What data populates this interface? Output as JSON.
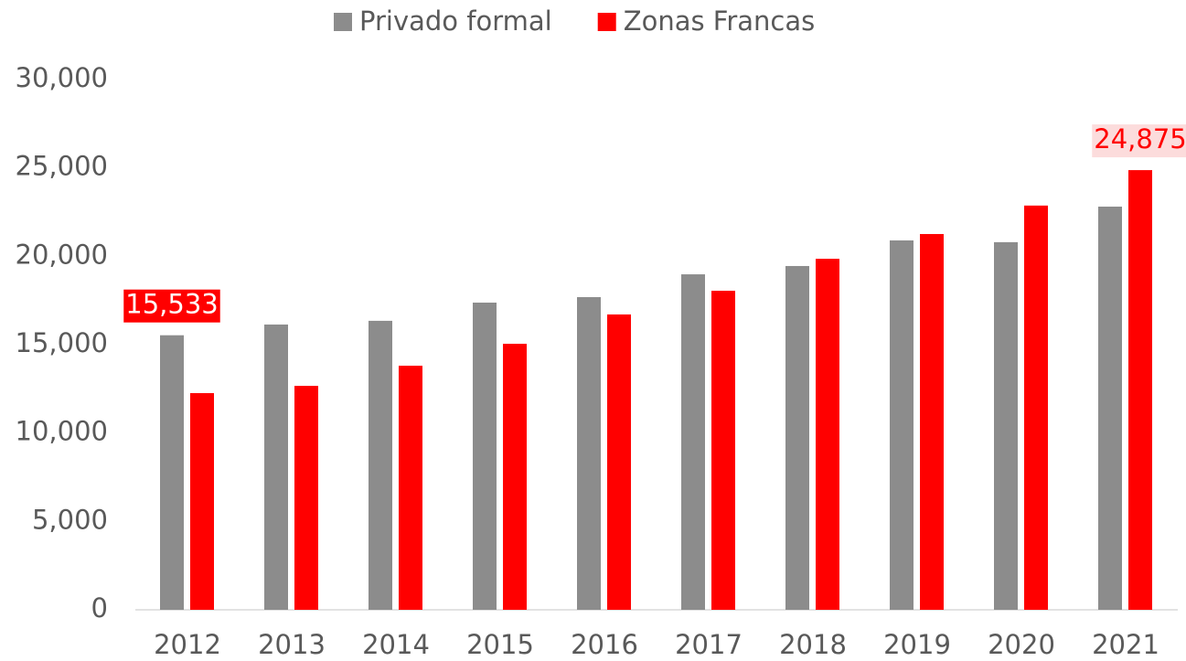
{
  "chart_data": {
    "type": "bar",
    "categories": [
      "2012",
      "2013",
      "2014",
      "2015",
      "2016",
      "2017",
      "2018",
      "2019",
      "2020",
      "2021"
    ],
    "series": [
      {
        "name": "Privado formal",
        "color": "#8c8c8c",
        "values": [
          15533,
          16140,
          16350,
          17380,
          17690,
          18980,
          19450,
          20900,
          20800,
          22810
        ],
        "value_labels": [
          "15,533",
          null,
          null,
          null,
          null,
          null,
          null,
          null,
          null,
          null
        ]
      },
      {
        "name": "Zonas Francas",
        "color": "#ff0000",
        "values": [
          12260,
          12670,
          13810,
          15050,
          16710,
          18050,
          19860,
          21260,
          22870,
          24875
        ],
        "value_labels": [
          null,
          null,
          null,
          null,
          null,
          null,
          null,
          null,
          null,
          "24,875"
        ]
      }
    ],
    "ylim": [
      0,
      30000
    ],
    "yticks": [
      0,
      {
        "value": 5000,
        "label": "5,000"
      },
      {
        "value": 10000,
        "label": "10,000"
      },
      {
        "value": 15000,
        "label": "15,000"
      },
      {
        "value": 20000,
        "label": "20,000"
      },
      {
        "value": 25000,
        "label": "25,000"
      },
      {
        "value": 30000,
        "label": "30,000"
      }
    ],
    "grid": false,
    "legend": "top"
  }
}
